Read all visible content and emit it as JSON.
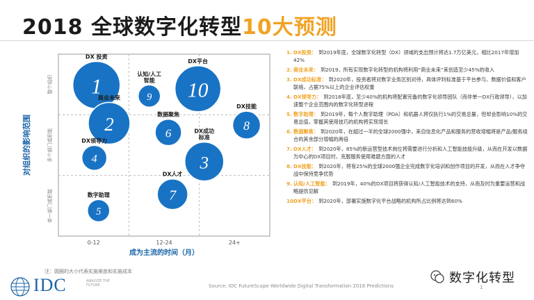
{
  "title": {
    "prefix": "2018 全球数字化转型",
    "highlight": "10大预测"
  },
  "chart_data": {
    "type": "scatter",
    "ylabel": "对组织的影响范围",
    "xlabel": "成为主流的时间（月）",
    "x_ticks": [
      "0-12",
      "12-24",
      "24+"
    ],
    "y_bands": [
      "单一部门或职能",
      "多个部门或职能",
      "整个组织"
    ],
    "bubbles": [
      {
        "n": "1",
        "label": "DX 投资",
        "x": 0.18,
        "y": 0.83,
        "size": 34
      },
      {
        "n": "2",
        "label": "商业未来",
        "x": 0.24,
        "y": 0.62,
        "size": 30
      },
      {
        "n": "3",
        "label": "DX成功\n标准",
        "x": 0.69,
        "y": 0.41,
        "size": 28
      },
      {
        "n": "4",
        "label": "DX领导力",
        "x": 0.17,
        "y": 0.43,
        "size": 18
      },
      {
        "n": "5",
        "label": "数字助理",
        "x": 0.19,
        "y": 0.14,
        "size": 16
      },
      {
        "n": "6",
        "label": "数据聚焦",
        "x": 0.52,
        "y": 0.57,
        "size": 19
      },
      {
        "n": "7",
        "label": "DX人才",
        "x": 0.54,
        "y": 0.23,
        "size": 22
      },
      {
        "n": "8",
        "label": "DX技能",
        "x": 0.89,
        "y": 0.61,
        "size": 20
      },
      {
        "n": "9",
        "label": "认知/人工\n智能",
        "x": 0.43,
        "y": 0.77,
        "size": 16
      },
      {
        "n": "10",
        "label": "DX平台",
        "x": 0.66,
        "y": 0.81,
        "size": 33
      }
    ],
    "bubble_color": "#1973c4"
  },
  "predictions": [
    {
      "num": "1.",
      "tag": "DX投资：",
      "text": "到2019年底，全球数字化转型（DX）领域的支出预计将达1.7万亿美元，相比2017年增加42%"
    },
    {
      "num": "2.",
      "tag": "商业未来：",
      "text": "到2019，所有实现数字化转型的机构将利用“商业未来”来创造至少45%的收入"
    },
    {
      "num": "3.",
      "tag": "DX成功标准：",
      "text": "到2020年，投资者将对数字业务区别对待，具体评判标准基于平台参与、数据价值和客户联络，占据75%以上的企业评估权重"
    },
    {
      "num": "4.",
      "tag": "DX领导力：",
      "text": "到2018年底，至少40%的机构将配置完备的数字化领导团队（而非单一DX行政领导），以加速整个企业范围内的数字化转型进程"
    },
    {
      "num": "5.",
      "tag": "数字助理：",
      "text": "到2019年，每个人数字助理（PDA）和机器人将仅执行1%的交易总量，但却会影响10%的交易总值，掌握其使用技巧的机构将实现增长"
    },
    {
      "num": "6.",
      "tag": "数据聚焦：",
      "text": "到2020年，在超过一半的全球2000强中，来自信息化产品和服务的营收增幅将是产品/服务组合的其余部分增幅的两倍"
    },
    {
      "num": "7.",
      "tag": "DX人才：",
      "text": "到2020年，85%的新运营型技术岗位将需要进行分析和人工智能技能升级，从而在开发以数据为中心的DX项目时，克服服务使用难题方面的人才"
    },
    {
      "num": "8.",
      "tag": "DX技能：",
      "text": "到2020年，将有25%的全球2000强企业完成数字化培训和创作项目的开发，从而在人才争夺战中保持竞争优势"
    },
    {
      "num": "9.",
      "tag": "认知/人工智能：",
      "text": "到2019年，40%的DX项目将获得认知/人工智能技术的支持，从而及时为重要运营和战略提供见解"
    },
    {
      "num": "10.",
      "tag": "DX平台：",
      "text": "到2020年，部署实施数字化平台战略的机构所占比例将达到60%"
    }
  ],
  "note": "注：圆圈的大小代表实施难度和实施成本",
  "source": "Source: IDC FutureScape Worldwide Digital Transformation 2018 Predictions",
  "page_number": "1",
  "logo": {
    "text": "IDC",
    "tagline": "ANALYZE THE FUTURE"
  },
  "watermark": "数字化转型",
  "colors": {
    "accent": "#f0a324",
    "bubble": "#1973c4",
    "logo": "#1b64a8"
  }
}
